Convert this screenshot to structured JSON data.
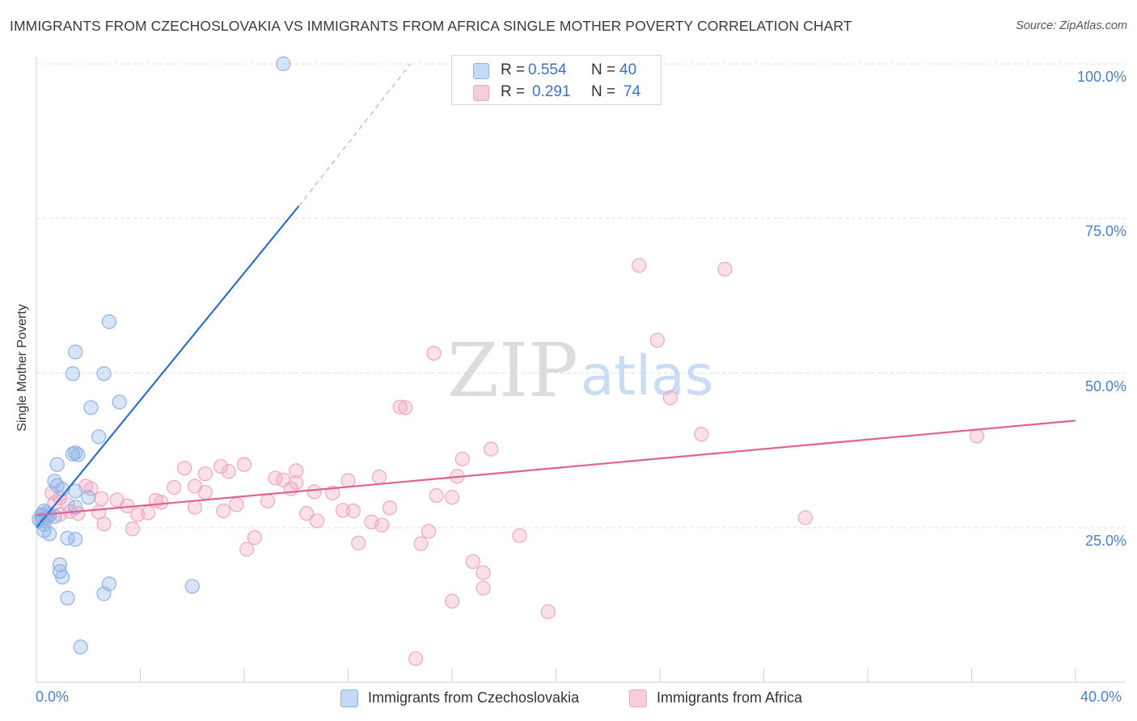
{
  "chart_data": {
    "type": "scatter",
    "title": "IMMIGRANTS FROM CZECHOSLOVAKIA VS IMMIGRANTS FROM AFRICA SINGLE MOTHER POVERTY CORRELATION CHART",
    "source": "Source: ZipAtlas.com",
    "ylabel": "Single Mother Poverty",
    "xlim": [
      0,
      40
    ],
    "ylim": [
      0,
      100
    ],
    "x_tick_labels": [
      "0.0%",
      "40.0%"
    ],
    "y_ticks": [
      25,
      50,
      75,
      100
    ],
    "y_tick_labels": [
      "25.0%",
      "50.0%",
      "75.0%",
      "100.0%"
    ],
    "watermark": {
      "zip": "ZIP",
      "atlas": "atlas"
    },
    "legend": {
      "r_label": "R =",
      "n_label": "N =",
      "entries": [
        {
          "r": "0.554",
          "n": "40"
        },
        {
          "r": "0.291",
          "n": "74"
        }
      ]
    },
    "series": [
      {
        "name": "Immigrants from Czechoslovakia",
        "color": "#8fb3e8",
        "line_color": "#2c6fcc",
        "trend": {
          "x0": 0,
          "y0": 25.0,
          "x1": 10.1,
          "y1": 77.0,
          "dash_x1": 14.4,
          "dash_y1": 100.0
        },
        "points": [
          [
            9.5,
            100.0
          ],
          [
            2.8,
            58.3
          ],
          [
            1.5,
            53.4
          ],
          [
            1.4,
            49.9
          ],
          [
            2.6,
            49.9
          ],
          [
            3.2,
            45.3
          ],
          [
            2.1,
            44.4
          ],
          [
            2.4,
            39.7
          ],
          [
            1.5,
            37.1
          ],
          [
            1.4,
            36.9
          ],
          [
            1.6,
            36.8
          ],
          [
            0.8,
            35.2
          ],
          [
            0.7,
            32.5
          ],
          [
            0.8,
            31.8
          ],
          [
            1.0,
            31.2
          ],
          [
            1.5,
            30.9
          ],
          [
            2.0,
            29.9
          ],
          [
            1.5,
            28.3
          ],
          [
            0.3,
            27.7
          ],
          [
            0.4,
            27.4
          ],
          [
            0.2,
            27.1
          ],
          [
            0.5,
            27.0
          ],
          [
            0.7,
            26.8
          ],
          [
            0.1,
            26.3
          ],
          [
            0.2,
            26.1
          ],
          [
            0.3,
            25.5
          ],
          [
            0.3,
            24.5
          ],
          [
            0.5,
            24.0
          ],
          [
            1.2,
            23.3
          ],
          [
            1.5,
            23.1
          ],
          [
            0.9,
            19.0
          ],
          [
            0.9,
            17.9
          ],
          [
            1.0,
            17.0
          ],
          [
            2.8,
            15.9
          ],
          [
            6.0,
            15.5
          ],
          [
            2.6,
            14.3
          ],
          [
            1.2,
            13.6
          ],
          [
            1.7,
            5.7
          ],
          [
            0.2,
            27.0
          ],
          [
            0.4,
            26.6
          ]
        ]
      },
      {
        "name": "Immigrants from Africa",
        "color": "#f2a6c0",
        "line_color": "#e0628f",
        "trend": {
          "x0": 0,
          "y0": 27.0,
          "x1": 40,
          "y1": 42.3
        },
        "points": [
          [
            23.2,
            67.4
          ],
          [
            26.5,
            66.8
          ],
          [
            23.9,
            55.3
          ],
          [
            15.3,
            53.2
          ],
          [
            24.4,
            46.0
          ],
          [
            14.0,
            44.5
          ],
          [
            14.2,
            44.4
          ],
          [
            25.6,
            40.1
          ],
          [
            36.2,
            39.8
          ],
          [
            17.5,
            37.7
          ],
          [
            16.4,
            36.1
          ],
          [
            8.0,
            35.2
          ],
          [
            7.1,
            34.9
          ],
          [
            5.7,
            34.6
          ],
          [
            7.4,
            34.1
          ],
          [
            6.5,
            33.7
          ],
          [
            10.0,
            34.2
          ],
          [
            16.2,
            33.3
          ],
          [
            13.2,
            33.2
          ],
          [
            9.2,
            33.0
          ],
          [
            9.5,
            32.7
          ],
          [
            12.0,
            32.6
          ],
          [
            10.0,
            32.3
          ],
          [
            6.1,
            31.7
          ],
          [
            9.8,
            31.3
          ],
          [
            5.3,
            31.5
          ],
          [
            10.7,
            30.8
          ],
          [
            6.5,
            30.7
          ],
          [
            11.4,
            30.6
          ],
          [
            15.4,
            30.2
          ],
          [
            16.0,
            29.9
          ],
          [
            2.5,
            29.7
          ],
          [
            3.1,
            29.5
          ],
          [
            4.6,
            29.4
          ],
          [
            8.9,
            29.3
          ],
          [
            4.8,
            29.1
          ],
          [
            0.7,
            29.0
          ],
          [
            1.2,
            28.7
          ],
          [
            7.7,
            28.7
          ],
          [
            3.5,
            28.5
          ],
          [
            6.1,
            28.3
          ],
          [
            13.6,
            28.2
          ],
          [
            11.8,
            27.8
          ],
          [
            12.2,
            27.7
          ],
          [
            7.2,
            27.7
          ],
          [
            2.4,
            27.5
          ],
          [
            4.3,
            27.4
          ],
          [
            1.6,
            27.3
          ],
          [
            10.4,
            27.3
          ],
          [
            3.9,
            27.1
          ],
          [
            0.9,
            27.1
          ],
          [
            29.6,
            26.6
          ],
          [
            10.8,
            26.1
          ],
          [
            12.9,
            25.9
          ],
          [
            13.3,
            25.4
          ],
          [
            2.6,
            25.6
          ],
          [
            3.7,
            24.8
          ],
          [
            15.1,
            24.4
          ],
          [
            18.6,
            23.7
          ],
          [
            8.4,
            23.4
          ],
          [
            12.4,
            22.5
          ],
          [
            14.8,
            22.4
          ],
          [
            8.1,
            21.5
          ],
          [
            16.8,
            19.5
          ],
          [
            17.2,
            17.7
          ],
          [
            17.2,
            15.2
          ],
          [
            16.0,
            13.1
          ],
          [
            19.7,
            11.4
          ],
          [
            14.6,
            3.8
          ],
          [
            0.6,
            30.6
          ],
          [
            1.9,
            31.7
          ],
          [
            0.9,
            29.8
          ],
          [
            2.1,
            31.3
          ],
          [
            1.3,
            27.6
          ]
        ]
      }
    ]
  }
}
